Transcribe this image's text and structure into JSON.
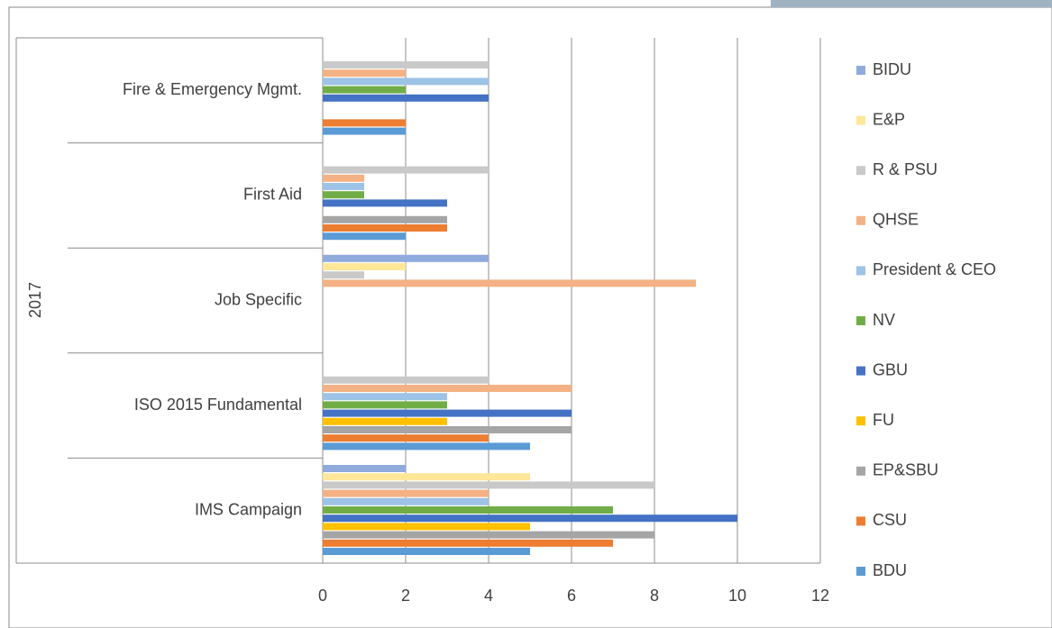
{
  "chart_data": {
    "type": "bar",
    "orientation": "horizontal",
    "group_label": "2017",
    "categories": [
      "IMS Campaign",
      "ISO 2015 Fundamental",
      "Job Specific",
      "First Aid",
      "Fire & Emergency Mgmt."
    ],
    "series": [
      {
        "name": "BDU",
        "color": "#5b9bd5",
        "values": [
          5,
          5,
          null,
          2,
          2
        ]
      },
      {
        "name": "CSU",
        "color": "#ed7d31",
        "values": [
          7,
          4,
          null,
          3,
          2
        ]
      },
      {
        "name": "EP&SBU",
        "color": "#a5a5a5",
        "values": [
          8,
          6,
          null,
          3,
          null
        ]
      },
      {
        "name": "FU",
        "color": "#ffc000",
        "values": [
          5,
          3,
          null,
          null,
          null
        ]
      },
      {
        "name": "GBU",
        "color": "#4472c4",
        "values": [
          10,
          6,
          null,
          3,
          4
        ]
      },
      {
        "name": "NV",
        "color": "#70ad47",
        "values": [
          7,
          3,
          null,
          1,
          2
        ]
      },
      {
        "name": "President & CEO",
        "color": "#9dc3e6",
        "values": [
          4,
          3,
          null,
          1,
          4
        ]
      },
      {
        "name": "QHSE",
        "color": "#f4b183",
        "values": [
          4,
          6,
          9,
          1,
          2
        ]
      },
      {
        "name": "R & PSU",
        "color": "#c9c9c9",
        "values": [
          8,
          4,
          1,
          4,
          4
        ]
      },
      {
        "name": "E&P",
        "color": "#ffe699",
        "values": [
          5,
          null,
          2,
          null,
          null
        ]
      },
      {
        "name": "BIDU",
        "color": "#8faadc",
        "values": [
          2,
          null,
          4,
          null,
          null
        ]
      }
    ],
    "xlim": [
      0,
      12
    ],
    "xticks": [
      0,
      2,
      4,
      6,
      8,
      10,
      12
    ],
    "grid": true,
    "legend": "right"
  }
}
